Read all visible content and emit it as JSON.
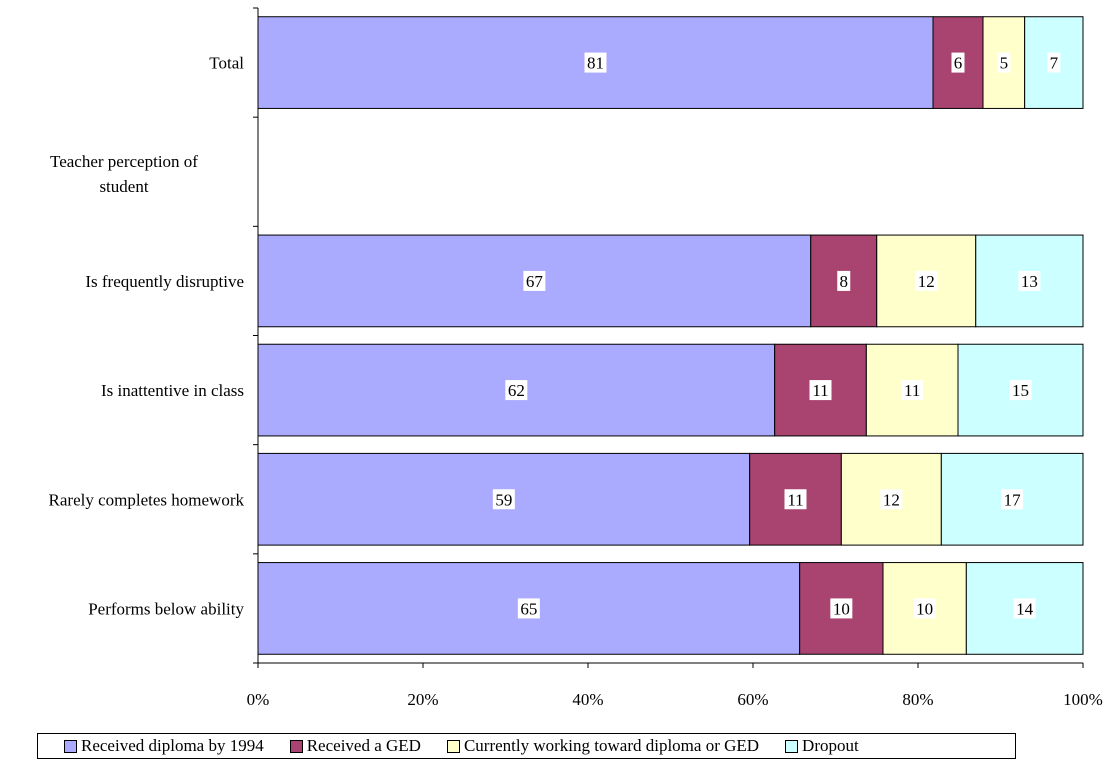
{
  "chart_data": {
    "type": "bar",
    "orientation": "horizontal",
    "stacked": "percent",
    "categories": [
      "Total",
      "Teacher perception of student",
      "Is frequently disruptive",
      "Is inattentive in class",
      "Rarely completes homework",
      "Performs below ability"
    ],
    "category_has_bar": [
      true,
      false,
      true,
      true,
      true,
      true
    ],
    "series": [
      {
        "name": "Received diploma by 1994",
        "color": "#aaaaff",
        "values": [
          81,
          null,
          67,
          62,
          59,
          65
        ]
      },
      {
        "name": "Received a GED",
        "color": "#a94470",
        "values": [
          6,
          null,
          8,
          11,
          11,
          10
        ]
      },
      {
        "name": "Currently working toward diploma or GED",
        "color": "#ffffcc",
        "values": [
          5,
          null,
          12,
          11,
          12,
          10
        ]
      },
      {
        "name": "Dropout",
        "color": "#ccffff",
        "values": [
          7,
          null,
          13,
          15,
          17,
          14
        ]
      }
    ],
    "x_ticks": [
      "0%",
      "20%",
      "40%",
      "60%",
      "80%",
      "100%"
    ],
    "xlim": [
      0,
      100
    ],
    "grid": false,
    "legend_position": "bottom"
  }
}
